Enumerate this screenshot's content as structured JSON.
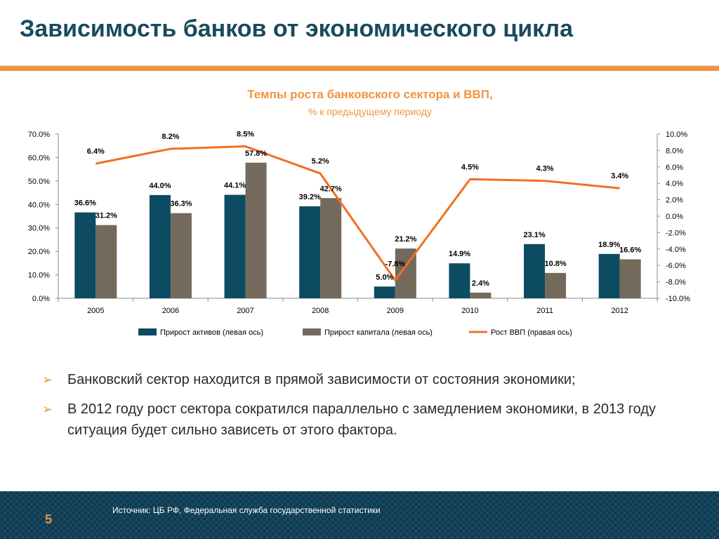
{
  "slide": {
    "title": "Зависимость банков от экономического цикла",
    "page_number": "5",
    "source": "Источник: ЦБ РФ, Федеральная служба государственной статистики"
  },
  "bullets": [
    "Банковский сектор находится в прямой зависимости от состояния экономики;",
    "В 2012 году рост сектора сократился параллельно с замедлением экономики, в 2013 году ситуация будет сильно зависеть от этого фактора."
  ],
  "colors": {
    "title": "#1a4a5e",
    "accent": "#f0943f",
    "assets_bar": "#0d4b63",
    "capital_bar": "#736a5c",
    "gdp_line": "#f07020",
    "chart_title": "#f0943f",
    "footer": "#0c3b52"
  },
  "chart_data": {
    "type": "bar+line",
    "title": "Темпы роста банковского сектора и ВВП,",
    "subtitle": "% к предыдущему периоду",
    "categories": [
      "2005",
      "2006",
      "2007",
      "2008",
      "2009",
      "2010",
      "2011",
      "2012"
    ],
    "left_axis": {
      "min": 0,
      "max": 70,
      "step": 10,
      "tick_labels": [
        "0.0%",
        "10.0%",
        "20.0%",
        "30.0%",
        "40.0%",
        "50.0%",
        "60.0%",
        "70.0%"
      ]
    },
    "right_axis": {
      "min": -10,
      "max": 10,
      "step": 2,
      "tick_labels": [
        "-10.0%",
        "-8.0%",
        "-6.0%",
        "-4.0%",
        "-2.0%",
        "0.0%",
        "2.0%",
        "4.0%",
        "6.0%",
        "8.0%",
        "10.0%"
      ]
    },
    "series": [
      {
        "name": "Прирост активов (левая ось)",
        "type": "bar",
        "axis": "left",
        "values": [
          36.6,
          44.0,
          44.1,
          39.2,
          5.0,
          14.9,
          23.1,
          18.9
        ],
        "labels": [
          "36.6%",
          "44.0%",
          "44.1%",
          "39.2%",
          "5.0%",
          "14.9%",
          "23.1%",
          "18.9%"
        ]
      },
      {
        "name": "Прирост капитала (левая ось)",
        "type": "bar",
        "axis": "left",
        "values": [
          31.2,
          36.3,
          57.8,
          42.7,
          21.2,
          2.4,
          10.8,
          16.6
        ],
        "labels": [
          "31.2%",
          "36.3%",
          "57.8%",
          "42.7%",
          "21.2%",
          "2.4%",
          "10.8%",
          "16.6%"
        ]
      },
      {
        "name": "Рост ВВП (правая ось)",
        "type": "line",
        "axis": "right",
        "values": [
          6.4,
          8.2,
          8.5,
          5.2,
          -7.8,
          4.5,
          4.3,
          3.4
        ],
        "labels": [
          "6.4%",
          "8.2%",
          "8.5%",
          "5.2%",
          "-7.8%",
          "4.5%",
          "4.3%",
          "3.4%"
        ]
      }
    ],
    "grid": false,
    "legend_position": "bottom"
  }
}
